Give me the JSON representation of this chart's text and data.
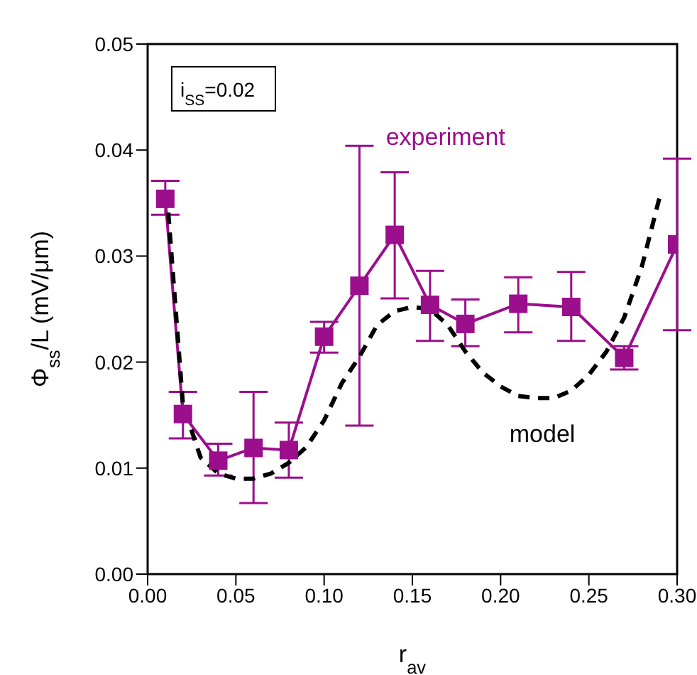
{
  "chart_data": {
    "type": "line",
    "xlabel": "r$_{av}$",
    "ylabel": "Φ$_{ss}$/L (mV/μm)",
    "annotations": [
      "i$_{SS}$=0.02"
    ],
    "xlim": [
      0,
      0.3
    ],
    "xticks": [
      {
        "value": 0,
        "label": "0.00"
      },
      {
        "value": 0.05,
        "label": "0.05"
      },
      {
        "value": 0.1,
        "label": "0.10"
      },
      {
        "value": 0.15,
        "label": "0.15"
      },
      {
        "value": 0.2,
        "label": "0.20"
      },
      {
        "value": 0.25,
        "label": "0.25"
      },
      {
        "value": 0.3,
        "label": "0.30"
      }
    ],
    "ylim": [
      0,
      0.05
    ],
    "yticks": [
      {
        "value": 0,
        "label": "0.00"
      },
      {
        "value": 0.01,
        "label": "0.01"
      },
      {
        "value": 0.02,
        "label": "0.02"
      },
      {
        "value": 0.03,
        "label": "0.03"
      },
      {
        "value": 0.04,
        "label": "0.04"
      },
      {
        "value": 0.05,
        "label": "0.05"
      }
    ],
    "series": [
      {
        "name": "experiment",
        "color": "#9b0e8c",
        "marker": "square",
        "line_style": "solid",
        "x": [
          0.01,
          0.02,
          0.04,
          0.06,
          0.08,
          0.1,
          0.12,
          0.14,
          0.16,
          0.18,
          0.21,
          0.24,
          0.27,
          0.3
        ],
        "values": [
          0.0354,
          0.0151,
          0.0107,
          0.0119,
          0.0117,
          0.0224,
          0.0272,
          0.032,
          0.0254,
          0.0236,
          0.0255,
          0.0252,
          0.0204,
          0.0311
        ],
        "errors": [
          [
            0.0339,
            0.0371
          ],
          [
            0.0128,
            0.0172
          ],
          [
            0.0093,
            0.0123
          ],
          [
            0.0067,
            0.0172
          ],
          [
            0.0091,
            0.0143
          ],
          [
            0.0209,
            0.0238
          ],
          [
            0.014,
            0.0404
          ],
          [
            0.026,
            0.0379
          ],
          [
            0.022,
            0.0286
          ],
          [
            0.0215,
            0.0259
          ],
          [
            0.0228,
            0.028
          ],
          [
            0.022,
            0.0285
          ],
          [
            0.0193,
            0.0215
          ],
          [
            0.023,
            0.0392
          ]
        ]
      },
      {
        "name": "model",
        "color": "#000000",
        "marker": "none",
        "line_style": "dashed",
        "x": [
          0.0117,
          0.02,
          0.03,
          0.04,
          0.05,
          0.06,
          0.07,
          0.08,
          0.09,
          0.1,
          0.11,
          0.12,
          0.13,
          0.14,
          0.15,
          0.16,
          0.17,
          0.18,
          0.19,
          0.2,
          0.21,
          0.22,
          0.23,
          0.24,
          0.25,
          0.26,
          0.27,
          0.28,
          0.29
        ],
        "values": [
          0.0341,
          0.016,
          0.011,
          0.0095,
          0.009,
          0.009,
          0.0095,
          0.0105,
          0.012,
          0.0145,
          0.018,
          0.0205,
          0.0235,
          0.0248,
          0.0252,
          0.025,
          0.0235,
          0.021,
          0.019,
          0.0177,
          0.0168,
          0.0166,
          0.0166,
          0.0173,
          0.0188,
          0.021,
          0.0242,
          0.029,
          0.0355
        ]
      }
    ]
  }
}
